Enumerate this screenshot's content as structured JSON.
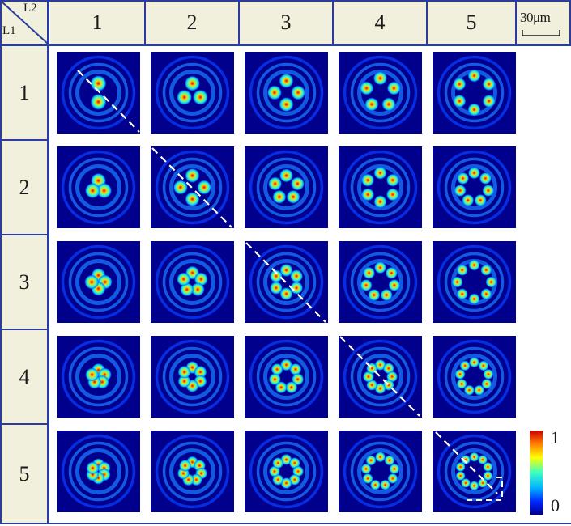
{
  "corner": {
    "column_axis": "L2",
    "row_axis": "L1"
  },
  "column_headers": [
    "1",
    "2",
    "3",
    "4",
    "5"
  ],
  "row_headers": [
    "1",
    "2",
    "3",
    "4",
    "5"
  ],
  "scale_bar": {
    "label": "30μm"
  },
  "colorbar": {
    "max_label": "1",
    "min_label": "0"
  },
  "colors": {
    "header_fill": "#f1f0dc",
    "grid_line": "#2a3d9c",
    "colormap": [
      "#00008c",
      "#0024ff",
      "#00b4ff",
      "#3cffc3",
      "#ffff00",
      "#ff7800",
      "#c80000"
    ]
  },
  "tiles": [
    [
      {
        "lobes": 2,
        "ring": 2
      },
      {
        "lobes": 3,
        "ring": 2
      },
      {
        "lobes": 4,
        "ring": 3
      },
      {
        "lobes": 5,
        "ring": 4
      },
      {
        "lobes": 6,
        "ring": 5
      }
    ],
    [
      {
        "lobes": 3,
        "ring": 1
      },
      {
        "lobes": 4,
        "ring": 3
      },
      {
        "lobes": 5,
        "ring": 3
      },
      {
        "lobes": 6,
        "ring": 4
      },
      {
        "lobes": 7,
        "ring": 4
      }
    ],
    [
      {
        "lobes": 4,
        "ring": 1
      },
      {
        "lobes": 5,
        "ring": 2
      },
      {
        "lobes": 6,
        "ring": 3
      },
      {
        "lobes": 7,
        "ring": 4
      },
      {
        "lobes": 8,
        "ring": 5
      }
    ],
    [
      {
        "lobes": 5,
        "ring": 1
      },
      {
        "lobes": 6,
        "ring": 2
      },
      {
        "lobes": 7,
        "ring": 3
      },
      {
        "lobes": 8,
        "ring": 3
      },
      {
        "lobes": 9,
        "ring": 4
      }
    ],
    [
      {
        "lobes": 6,
        "ring": 1
      },
      {
        "lobes": 7,
        "ring": 2
      },
      {
        "lobes": 8,
        "ring": 3
      },
      {
        "lobes": 9,
        "ring": 4
      },
      {
        "lobes": 10,
        "ring": 4
      }
    ]
  ]
}
